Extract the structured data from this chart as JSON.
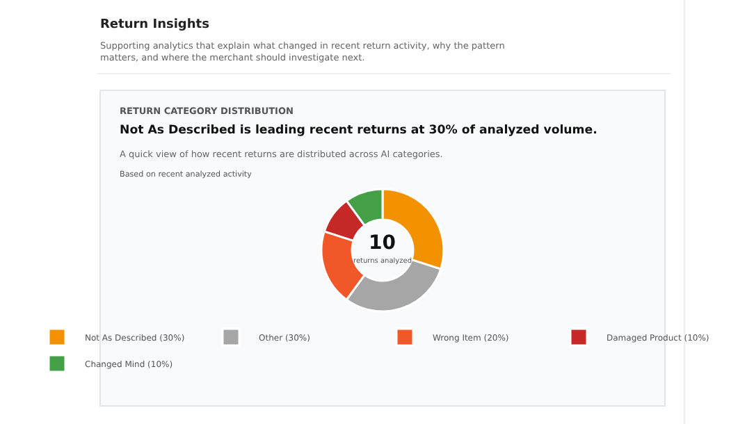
{
  "chart_data": {
    "type": "donut",
    "title": "Return Insights",
    "subtitle": "Supporting analytics that explain what changed in recent return activity, why the pattern matters, and where the merchant should investigate next.",
    "annotations": [
      "RETURN CATEGORY DISTRIBUTION",
      "Not As Described is leading recent returns at 30% of analyzed volume.",
      "A quick view of how recent returns are distributed across AI categories.",
      "Based on recent analyzed activity",
      "10",
      "returns analyzed"
    ],
    "categories": [
      "Not As Described (30%)",
      "Other (30%)",
      "Wrong Item (20%)",
      "Damaged Product (10%)",
      "Changed Mind (10%)"
    ],
    "values": [
      30,
      30,
      20,
      10,
      10
    ],
    "colors": [
      "#f39200",
      "#a6a6a6",
      "#f0582a",
      "#c62828",
      "#43a047"
    ],
    "legend": "bottom"
  }
}
